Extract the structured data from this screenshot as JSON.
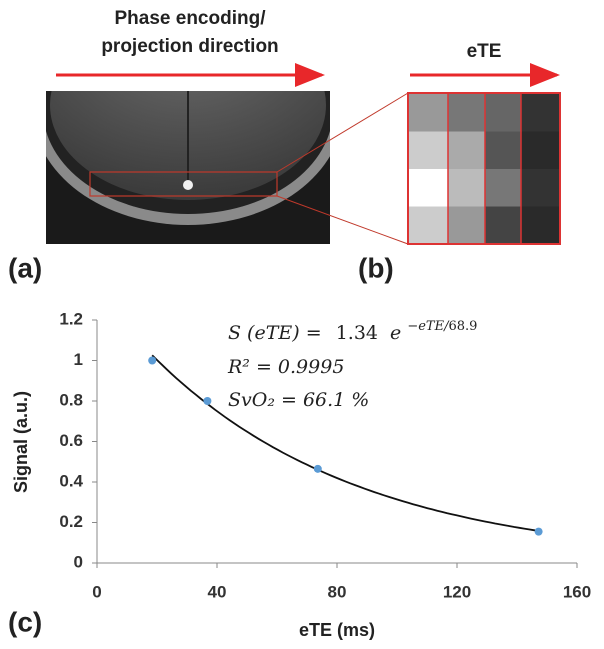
{
  "figure": {
    "panel_a": {
      "label": "(a)",
      "title_lines": [
        "Phase encoding/",
        "projection direction"
      ]
    },
    "panel_b": {
      "label": "(b)",
      "arrow_label": "eTE"
    },
    "panel_c": {
      "label": "(c)"
    }
  },
  "chart_data": {
    "type": "scatter",
    "x_label": "eTE (ms)",
    "y_label": "Signal (a.u.)",
    "x": [
      18.4,
      36.8,
      73.6,
      147.2
    ],
    "values": [
      1.0,
      0.8,
      0.465,
      0.155
    ],
    "color": "#5b9bd5",
    "xlim": [
      0,
      160
    ],
    "xticks": [
      0,
      40,
      80,
      120,
      160
    ],
    "ylim": [
      0,
      1.2
    ],
    "yticks": [
      0,
      0.2,
      0.4,
      0.6,
      0.8,
      1,
      1.2
    ],
    "grid": false,
    "equation": {
      "lhs": "S (eTE) =",
      "amplitude": 1.34,
      "base": "e",
      "exponent_prefix": "−eTE/",
      "tau": 68.9
    },
    "annotations": [
      "R² = 0.9995",
      "SvO₂ = 66.1 %"
    ]
  }
}
